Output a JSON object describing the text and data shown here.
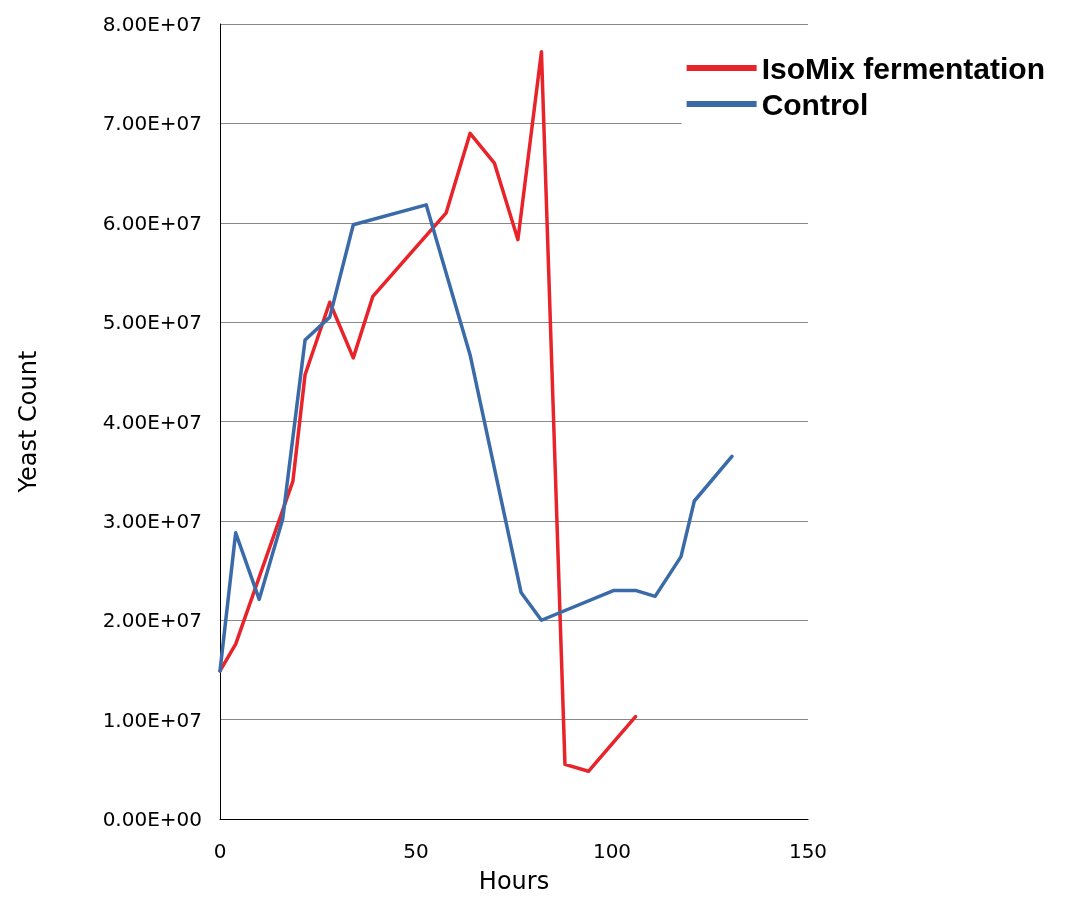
{
  "chart_data": {
    "type": "line",
    "xlabel": "Hours",
    "ylabel": "Yeast Count",
    "xlim": [
      0,
      150
    ],
    "xticks": [
      0,
      50,
      100,
      150
    ],
    "ylim": [
      0,
      80000000
    ],
    "yticks": [
      {
        "value": 0,
        "label": "0.00E+00"
      },
      {
        "value": 10000000,
        "label": "1.00E+07"
      },
      {
        "value": 20000000,
        "label": "2.00E+07"
      },
      {
        "value": 30000000,
        "label": "3.00E+07"
      },
      {
        "value": 40000000,
        "label": "4.00E+07"
      },
      {
        "value": 50000000,
        "label": "5.00E+07"
      },
      {
        "value": 60000000,
        "label": "6.00E+07"
      },
      {
        "value": 70000000,
        "label": "7.00E+07"
      },
      {
        "value": 80000000,
        "label": "8.00E+07"
      }
    ],
    "grid": "y",
    "legend": "top right",
    "marker": "none",
    "line_style": "solid",
    "series": [
      {
        "name": "IsoMix fermentation",
        "color": "#e8232a",
        "x": [
          0,
          4,
          18.6,
          21.7,
          28,
          34,
          39,
          57.7,
          63.8,
          70,
          76,
          82,
          88,
          94,
          106
        ],
        "values": [
          14900000,
          17600000,
          34000000,
          44700000,
          52000000,
          46400000,
          52600000,
          61000000,
          69000000,
          66000000,
          58300000,
          77200000,
          5500000,
          4800000,
          10300000
        ]
      },
      {
        "name": "Control",
        "color": "#3a6aa8",
        "x": [
          0,
          4,
          10,
          16,
          21.7,
          28,
          34,
          52.6,
          63.8,
          76.8,
          82,
          100.5,
          106,
          111,
          117.6,
          121,
          130.6
        ],
        "values": [
          14900000,
          28800000,
          22100000,
          30200000,
          48200000,
          50500000,
          59800000,
          61800000,
          46700000,
          22800000,
          20000000,
          23000000,
          23000000,
          22400000,
          26400000,
          32000000,
          36500000
        ]
      }
    ]
  }
}
